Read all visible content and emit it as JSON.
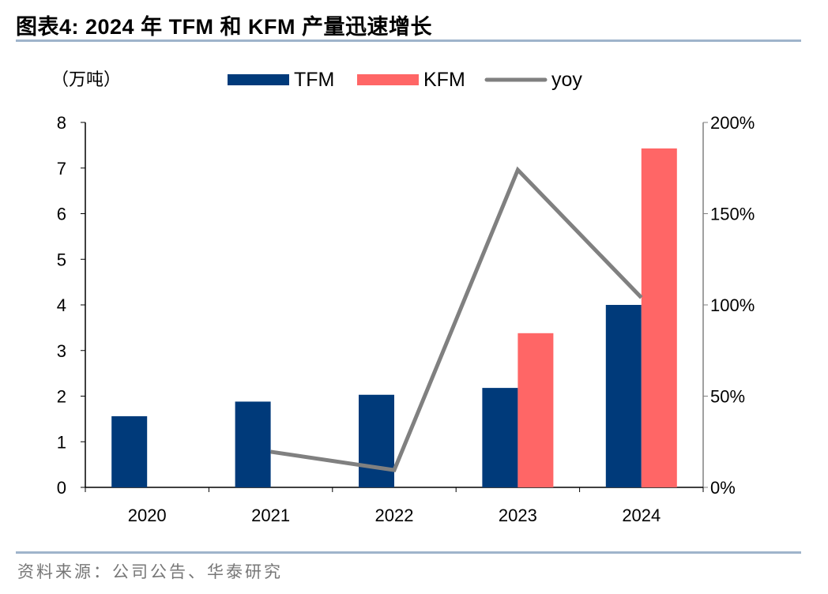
{
  "header": {
    "title": "图表4:  2024 年  TFM 和 KFM 产量迅速增长"
  },
  "footer": {
    "source": "资料来源：公司公告、华泰研究"
  },
  "colors": {
    "tfm": "#003a7a",
    "kfm": "#ff6666",
    "yoy": "#808080",
    "rule": "#9fb4cb"
  },
  "chart_data": {
    "type": "bar",
    "title": "2024 年 TFM 和 KFM 产量迅速增长",
    "unit_label": "（万吨）",
    "categories": [
      "2020",
      "2021",
      "2022",
      "2023",
      "2024"
    ],
    "series": [
      {
        "name": "TFM",
        "type": "bar",
        "axis": "left",
        "values": [
          1.56,
          1.88,
          2.03,
          2.18,
          4.0
        ]
      },
      {
        "name": "KFM",
        "type": "bar",
        "axis": "left",
        "values": [
          null,
          null,
          null,
          3.38,
          7.43
        ]
      },
      {
        "name": "yoy",
        "type": "line",
        "axis": "right",
        "values": [
          null,
          19.5,
          9.5,
          174,
          104
        ]
      }
    ],
    "left_axis": {
      "ylim": [
        0,
        8
      ],
      "ticks": [
        "0",
        "1",
        "2",
        "3",
        "4",
        "5",
        "6",
        "7",
        "8"
      ]
    },
    "right_axis": {
      "ylim": [
        0,
        200
      ],
      "ticks": [
        "0%",
        "50%",
        "100%",
        "150%",
        "200%"
      ]
    },
    "legend": "top",
    "grid": false
  }
}
